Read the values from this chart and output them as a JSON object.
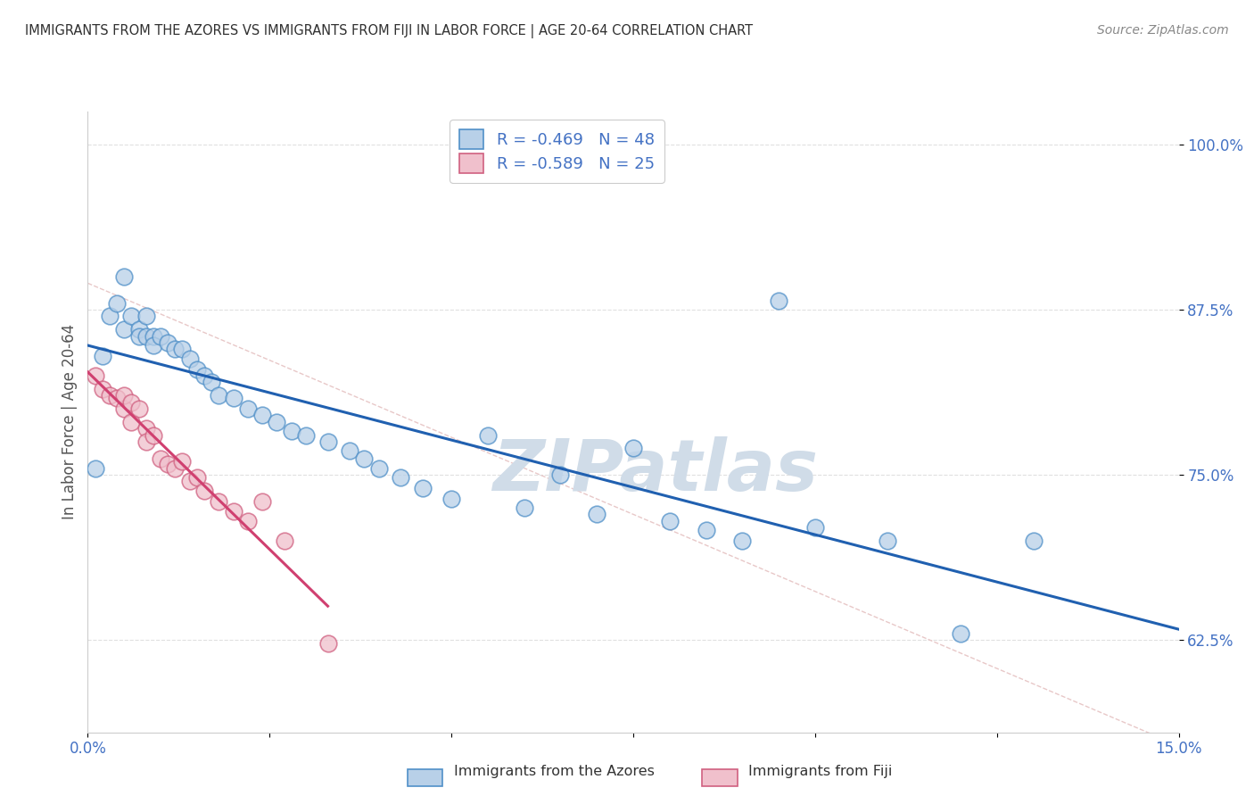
{
  "title": "IMMIGRANTS FROM THE AZORES VS IMMIGRANTS FROM FIJI IN LABOR FORCE | AGE 20-64 CORRELATION CHART",
  "source": "Source: ZipAtlas.com",
  "ylabel": "In Labor Force | Age 20-64",
  "xlim": [
    0.0,
    0.15
  ],
  "ylim": [
    0.555,
    1.025
  ],
  "yticks": [
    0.625,
    0.75,
    0.875,
    1.0
  ],
  "ytick_labels": [
    "62.5%",
    "75.0%",
    "87.5%",
    "100.0%"
  ],
  "xticks": [
    0.0,
    0.025,
    0.05,
    0.075,
    0.1,
    0.125,
    0.15
  ],
  "xtick_labels_show": [
    "0.0%",
    "",
    "",
    "",
    "",
    "",
    "15.0%"
  ],
  "legend_label1": "R = -0.469   N = 48",
  "legend_label2": "R = -0.589   N = 25",
  "legend_sublabel1": "Immigrants from the Azores",
  "legend_sublabel2": "Immigrants from Fiji",
  "color_azores_face": "#b8d0e8",
  "color_azores_edge": "#5090c8",
  "color_fiji_face": "#f0c0cc",
  "color_fiji_edge": "#d06080",
  "color_line_azores": "#2060b0",
  "color_line_fiji": "#d04070",
  "color_ref_line": "#d0c8c0",
  "color_watermark": "#d0dce8",
  "background_color": "#ffffff",
  "grid_color": "#e0e0e0",
  "title_color": "#303030",
  "axis_label_color": "#555555",
  "tick_label_color": "#4472c4",
  "watermark_text": "ZIPatlas",
  "azores_x": [
    0.001,
    0.002,
    0.003,
    0.004,
    0.005,
    0.005,
    0.006,
    0.007,
    0.007,
    0.008,
    0.008,
    0.009,
    0.009,
    0.01,
    0.011,
    0.012,
    0.013,
    0.014,
    0.015,
    0.016,
    0.017,
    0.018,
    0.02,
    0.022,
    0.024,
    0.026,
    0.028,
    0.03,
    0.033,
    0.036,
    0.038,
    0.04,
    0.043,
    0.046,
    0.05,
    0.055,
    0.06,
    0.065,
    0.07,
    0.075,
    0.08,
    0.085,
    0.09,
    0.095,
    0.1,
    0.11,
    0.12,
    0.13
  ],
  "azores_y": [
    0.755,
    0.84,
    0.87,
    0.88,
    0.9,
    0.86,
    0.87,
    0.86,
    0.855,
    0.87,
    0.855,
    0.855,
    0.848,
    0.855,
    0.85,
    0.845,
    0.845,
    0.838,
    0.83,
    0.825,
    0.82,
    0.81,
    0.808,
    0.8,
    0.795,
    0.79,
    0.783,
    0.78,
    0.775,
    0.768,
    0.762,
    0.755,
    0.748,
    0.74,
    0.732,
    0.78,
    0.725,
    0.75,
    0.72,
    0.77,
    0.715,
    0.708,
    0.7,
    0.882,
    0.71,
    0.7,
    0.63,
    0.7
  ],
  "fiji_x": [
    0.001,
    0.002,
    0.003,
    0.004,
    0.005,
    0.005,
    0.006,
    0.006,
    0.007,
    0.008,
    0.008,
    0.009,
    0.01,
    0.011,
    0.012,
    0.013,
    0.014,
    0.015,
    0.016,
    0.018,
    0.02,
    0.022,
    0.024,
    0.027,
    0.033
  ],
  "fiji_y": [
    0.825,
    0.815,
    0.81,
    0.808,
    0.8,
    0.81,
    0.805,
    0.79,
    0.8,
    0.785,
    0.775,
    0.78,
    0.762,
    0.758,
    0.755,
    0.76,
    0.745,
    0.748,
    0.738,
    0.73,
    0.722,
    0.715,
    0.73,
    0.7,
    0.622
  ],
  "ref_line_x": [
    0.0,
    0.15
  ],
  "ref_line_y": [
    0.895,
    0.545
  ]
}
